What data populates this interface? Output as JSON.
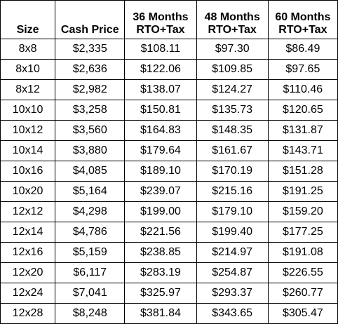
{
  "table": {
    "headers": [
      {
        "key": "size",
        "lines": [
          "Size"
        ]
      },
      {
        "key": "cash_price",
        "lines": [
          "Cash Price"
        ]
      },
      {
        "key": "m36",
        "lines": [
          "36 Months",
          "RTO+Tax"
        ]
      },
      {
        "key": "m48",
        "lines": [
          "48 Months",
          "RTO+Tax"
        ]
      },
      {
        "key": "m60",
        "lines": [
          "60 Months",
          "RTO+Tax"
        ]
      }
    ],
    "rows": [
      [
        "8x8",
        "$2,335",
        "$108.11",
        "$97.30",
        "$86.49"
      ],
      [
        "8x10",
        "$2,636",
        "$122.06",
        "$109.85",
        "$97.65"
      ],
      [
        "8x12",
        "$2,982",
        "$138.07",
        "$124.27",
        "$110.46"
      ],
      [
        "10x10",
        "$3,258",
        "$150.81",
        "$135.73",
        "$120.65"
      ],
      [
        "10x12",
        "$3,560",
        "$164.83",
        "$148.35",
        "$131.87"
      ],
      [
        "10x14",
        "$3,880",
        "$179.64",
        "$161.67",
        "$143.71"
      ],
      [
        "10x16",
        "$4,085",
        "$189.10",
        "$170.19",
        "$151.28"
      ],
      [
        "10x20",
        "$5,164",
        "$239.07",
        "$215.16",
        "$191.25"
      ],
      [
        "12x12",
        "$4,298",
        "$199.00",
        "$179.10",
        "$159.20"
      ],
      [
        "12x14",
        "$4,786",
        "$221.56",
        "$199.40",
        "$177.25"
      ],
      [
        "12x16",
        "$5,159",
        "$238.85",
        "$214.97",
        "$191.08"
      ],
      [
        "12x20",
        "$6,117",
        "$283.19",
        "$254.87",
        "$226.55"
      ],
      [
        "12x24",
        "$7,041",
        "$325.97",
        "$293.37",
        "$260.77"
      ],
      [
        "12x28",
        "$8,248",
        "$381.84",
        "$343.65",
        "$305.47"
      ]
    ]
  }
}
